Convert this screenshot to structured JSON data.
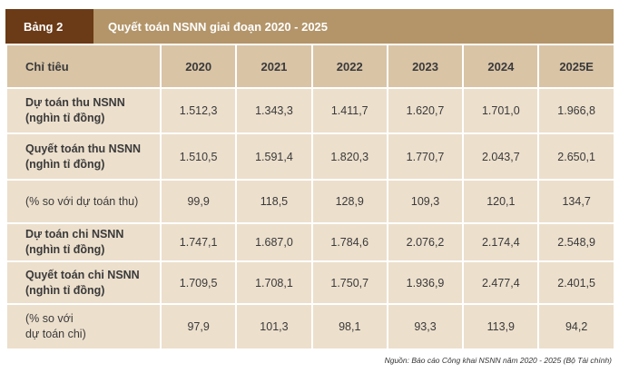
{
  "header": {
    "tag": "Bảng 2",
    "title": "Quyết toán NSNN giai đoạn 2020 - 2025"
  },
  "table": {
    "columns": [
      "Chỉ tiêu",
      "2020",
      "2021",
      "2022",
      "2023",
      "2024",
      "2025E"
    ],
    "rows": [
      {
        "label_line1": "Dự toán thu NSNN",
        "label_line2": "(nghìn tỉ đồng)",
        "values": [
          "1.512,3",
          "1.343,3",
          "1.411,7",
          "1.620,7",
          "1.701,0",
          "1.966,8"
        ]
      },
      {
        "label_line1": "Quyết toán thu NSNN",
        "label_line2": "(nghìn tỉ đồng)",
        "values": [
          "1.510,5",
          "1.591,4",
          "1.820,3",
          "1.770,7",
          "2.043,7",
          "2.650,1"
        ]
      },
      {
        "label_line1": "(% so với dự toán thu)",
        "label_line2": "",
        "values": [
          "99,9",
          "118,5",
          "128,9",
          "109,3",
          "120,1",
          "134,7"
        ]
      },
      {
        "label_line1": "Dự toán chi NSNN",
        "label_line2": "(nghìn tỉ đồng)",
        "values": [
          "1.747,1",
          "1.687,0",
          "1.784,6",
          "2.076,2",
          "2.174,4",
          "2.548,9"
        ]
      },
      {
        "label_line1": "Quyết toán chi NSNN",
        "label_line2": "(nghìn tỉ đồng)",
        "values": [
          "1.709,5",
          "1.708,1",
          "1.750,7",
          "1.936,9",
          "2.477,4",
          "2.401,5"
        ]
      },
      {
        "label_line1": "(% so với",
        "label_line2": "dự toán chi)",
        "values": [
          "97,9",
          "101,3",
          "98,1",
          "93,3",
          "113,9",
          "94,2"
        ]
      }
    ]
  },
  "source": "Nguồn: Báo cáo Công khai NSNN năm 2020 - 2025 (Bộ Tài chính)"
}
